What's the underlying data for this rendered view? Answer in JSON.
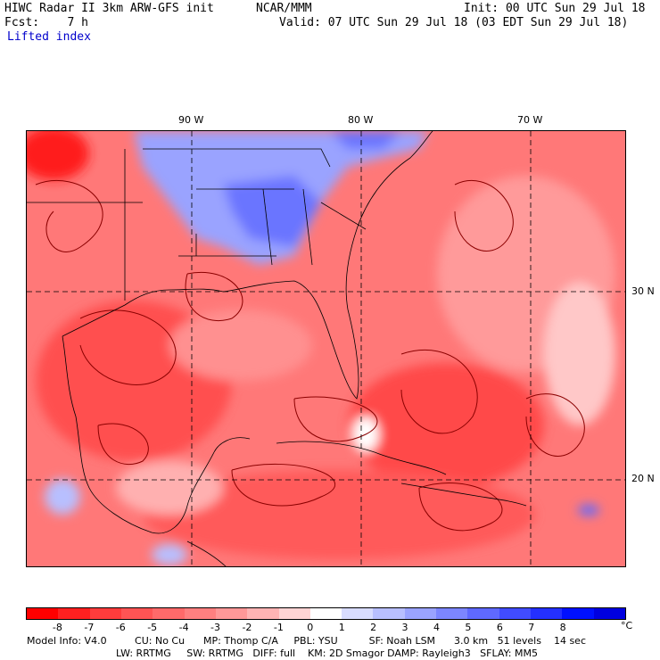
{
  "header": {
    "title": "HIWC Radar II 3km ARW-GFS init",
    "center": "NCAR/MMM",
    "init": "Init: 00 UTC Sun 29 Jul 18",
    "fcst": "Fcst:    7 h",
    "valid": "Valid: 07 UTC Sun 29 Jul 18 (03 EDT Sun 29 Jul 18)",
    "field": "Lifted index"
  },
  "axes": {
    "lon_labels": [
      "90 W",
      "80 W",
      "70 W"
    ],
    "lat_labels": [
      "30 N",
      "20 N"
    ]
  },
  "colorbar": {
    "colors": [
      "#ff0000",
      "#ff2020",
      "#ff3c3c",
      "#ff5454",
      "#ff6a6a",
      "#ff8080",
      "#ff9898",
      "#ffb4b4",
      "#ffd4d4",
      "#ffffff",
      "#d8dcff",
      "#b8bfff",
      "#9aa3ff",
      "#7c86ff",
      "#5f69ff",
      "#414cff",
      "#2430ff",
      "#0010ff",
      "#0000e0"
    ],
    "ticks": [
      "-8",
      "-7",
      "-6",
      "-5",
      "-4",
      "-3",
      "-2",
      "-1",
      "0",
      "1",
      "2",
      "3",
      "4",
      "5",
      "6",
      "7",
      "8"
    ],
    "unit": "°C"
  },
  "model_info": {
    "line1": "Model Info: V4.0         CU: No Cu      MP: Thomp C/A     PBL: YSU          SF: Noah LSM      3.0 km   51 levels    14 sec",
    "line2": "LW: RRTMG     SW: RRTMG   DIFF: full    KM: 2D Smagor DAMP: Rayleigh3   SFLAY: MM5"
  },
  "colors": {
    "negative": "#ff6a6a",
    "positive": "#7c86ff",
    "title_blue": "#0000cc"
  }
}
